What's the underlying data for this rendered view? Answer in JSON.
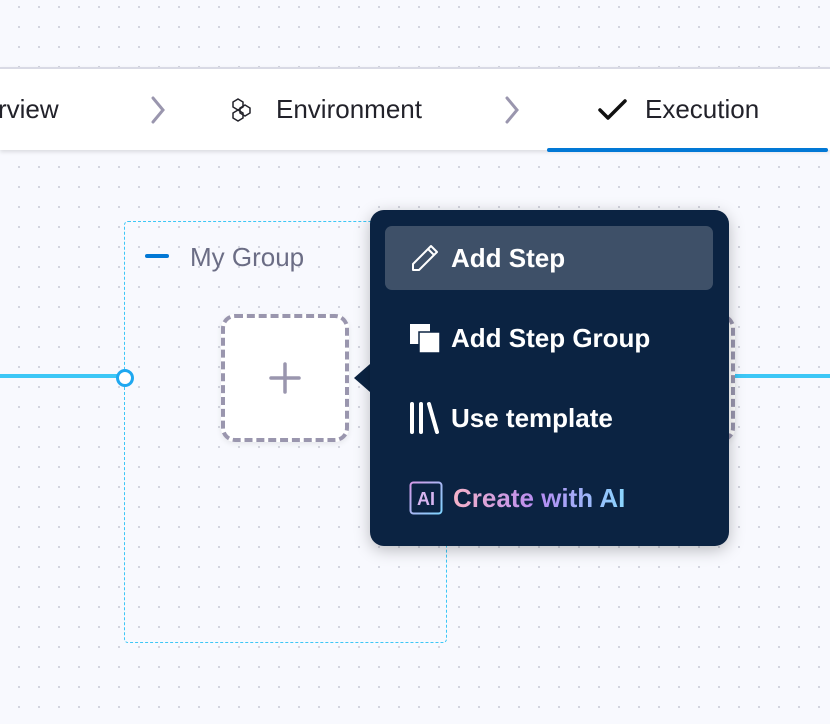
{
  "steps": {
    "items": [
      {
        "label": "rview",
        "icon": "none"
      },
      {
        "label": "Environment",
        "icon": "hexagons-icon"
      },
      {
        "label": "Execution",
        "icon": "checkmark-icon",
        "active": true
      }
    ]
  },
  "canvas": {
    "group_label": "My Group"
  },
  "menu": {
    "items": [
      {
        "label": "Add Step",
        "icon": "pencil-icon",
        "highlighted": true
      },
      {
        "label": "Add Step Group",
        "icon": "step-group-icon"
      },
      {
        "label": "Use template",
        "icon": "template-icon"
      },
      {
        "label": "Create with AI",
        "icon": "ai-icon"
      }
    ]
  },
  "colors": {
    "accent": "#0278d5",
    "link_line": "#3dc7f6",
    "menu_bg": "#0b2342",
    "menu_highlight": "#3e5068"
  }
}
